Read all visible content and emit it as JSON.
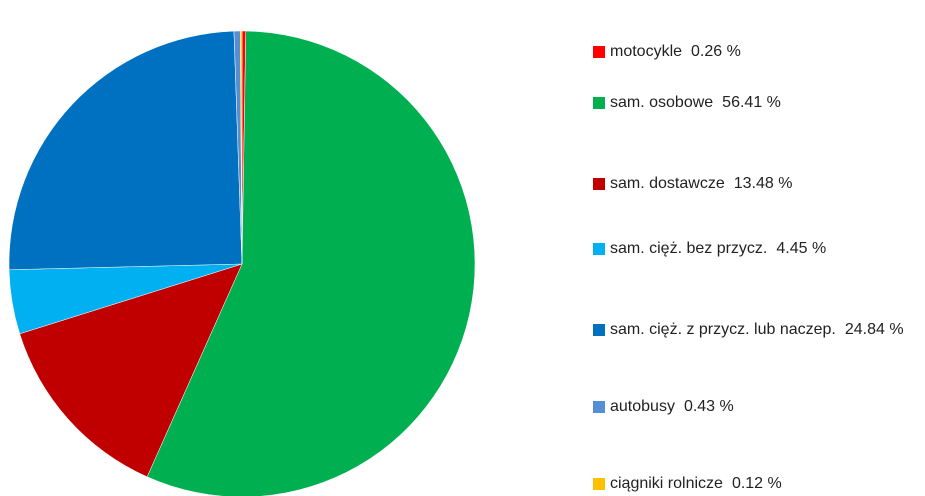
{
  "chart_data": {
    "type": "pie",
    "categories": [
      "motocykle",
      "sam. osobowe",
      "sam. dostawcze",
      "sam. cięż. bez przycz.",
      "sam. cięż. z przycz. lub naczep.",
      "autobusy",
      "ciągniki rolnicze"
    ],
    "values": [
      0.26,
      56.41,
      13.48,
      4.45,
      24.84,
      0.43,
      0.12
    ],
    "value_labels": [
      "0.26 %",
      "56.41 %",
      "13.48 %",
      "4.45 %",
      "24.84 %",
      "0.43 %",
      "0.12 %"
    ],
    "colors": [
      "#ff0000",
      "#00b050",
      "#c00000",
      "#00b0f0",
      "#0070c0",
      "#558ed5",
      "#ffc000"
    ],
    "legend": "right"
  }
}
